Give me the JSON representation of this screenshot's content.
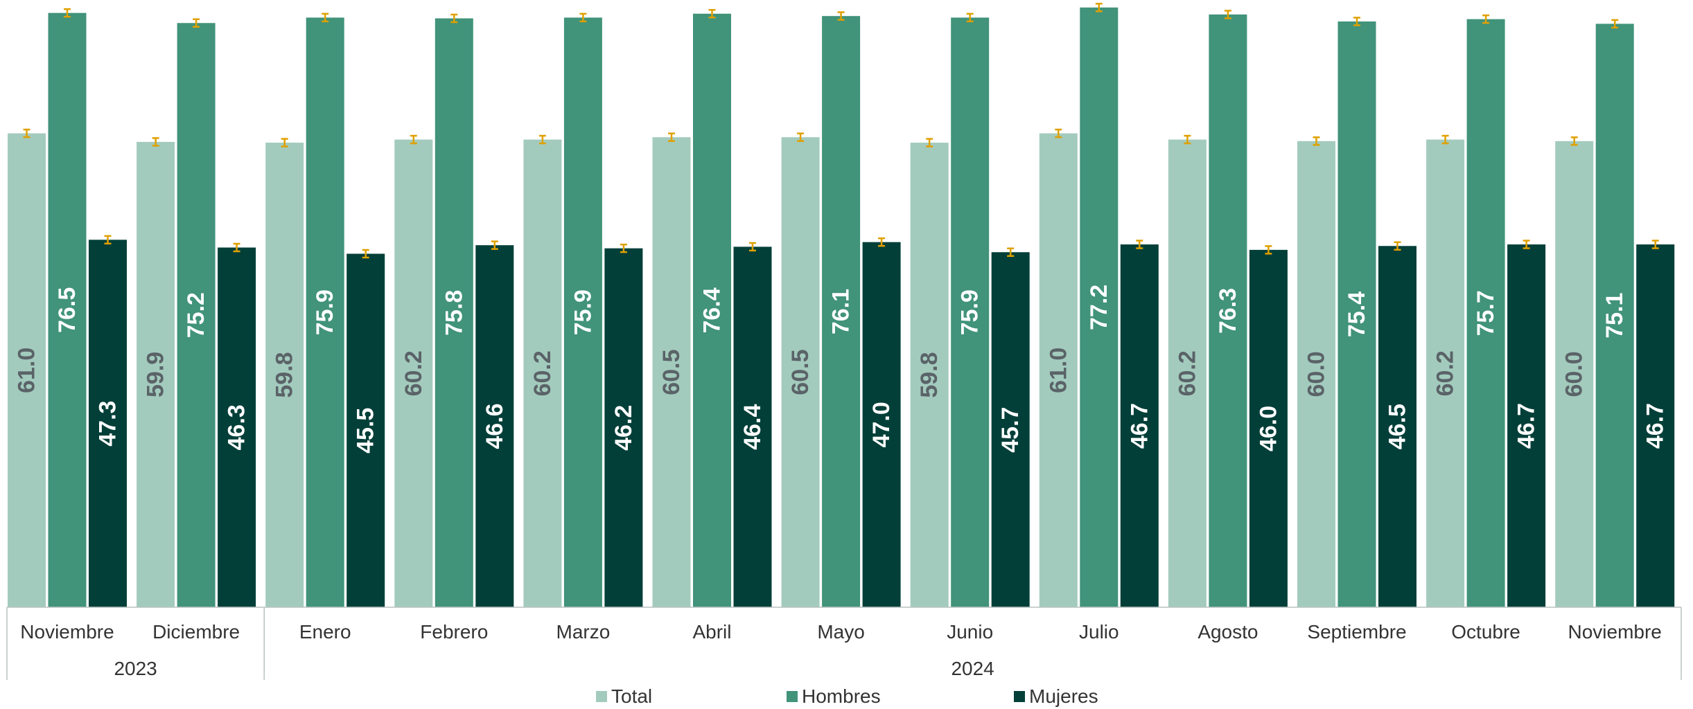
{
  "chart_data": {
    "type": "bar",
    "title": "",
    "xlabel": "",
    "ylabel": "",
    "ylim": [
      0,
      80
    ],
    "grid": false,
    "legend": "bottom",
    "error_bars": true,
    "groups": [
      {
        "label": "2023",
        "months": [
          "Noviembre",
          "Diciembre"
        ]
      },
      {
        "label": "2024",
        "months": [
          "Enero",
          "Febrero",
          "Marzo",
          "Abril",
          "Mayo",
          "Junio",
          "Julio",
          "Agosto",
          "Septiembre",
          "Octubre",
          "Noviembre"
        ]
      }
    ],
    "categories": [
      "Noviembre",
      "Diciembre",
      "Enero",
      "Febrero",
      "Marzo",
      "Abril",
      "Mayo",
      "Junio",
      "Julio",
      "Agosto",
      "Septiembre",
      "Octubre",
      "Noviembre"
    ],
    "series": [
      {
        "name": "Total",
        "color": "#a3cbbd",
        "label_color": "#5a6368",
        "values": [
          61.0,
          59.9,
          59.8,
          60.2,
          60.2,
          60.5,
          60.5,
          59.8,
          61.0,
          60.2,
          60.0,
          60.2,
          60.0
        ],
        "labels": [
          "61.0",
          "59.9",
          "59.8",
          "60.2",
          "60.2",
          "60.5",
          "60.5",
          "59.8",
          "61.0",
          "60.2",
          "60.0",
          "60.2",
          "60.0"
        ]
      },
      {
        "name": "Hombres",
        "color": "#41937a",
        "label_color": "#ffffff",
        "values": [
          76.5,
          75.2,
          75.9,
          75.8,
          75.9,
          76.4,
          76.1,
          75.9,
          77.2,
          76.3,
          75.4,
          75.7,
          75.1
        ],
        "labels": [
          "76.5",
          "75.2",
          "75.9",
          "75.8",
          "75.9",
          "76.4",
          "76.1",
          "75.9",
          "77.2",
          "76.3",
          "75.4",
          "75.7",
          "75.1"
        ]
      },
      {
        "name": "Mujeres",
        "color": "#023f39",
        "label_color": "#ffffff",
        "values": [
          47.3,
          46.3,
          45.5,
          46.6,
          46.2,
          46.4,
          47.0,
          45.7,
          46.7,
          46.0,
          46.5,
          46.7,
          46.7
        ],
        "labels": [
          "47.3",
          "46.3",
          "45.5",
          "46.6",
          "46.2",
          "46.4",
          "47.0",
          "45.7",
          "46.7",
          "46.0",
          "46.5",
          "46.7",
          "46.7"
        ]
      }
    ],
    "error_bar_color": "#e0a000"
  }
}
